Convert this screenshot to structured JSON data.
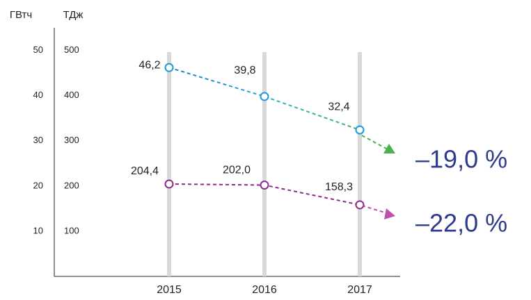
{
  "chart_data": {
    "type": "line",
    "y_label": "ГВтч",
    "y2_label": "ТДж",
    "categories": [
      "2015",
      "2016",
      "2017"
    ],
    "series": [
      {
        "name": "ГВтч",
        "color": "#1a9ad6",
        "values": [
          46.2,
          39.8,
          32.4
        ],
        "value_labels": [
          "46,2",
          "39,8",
          "32,4"
        ]
      },
      {
        "name": "ТДж",
        "color": "#8e2a8e",
        "axis": "y2",
        "values": [
          204.4,
          202.0,
          158.3
        ],
        "value_labels": [
          "204,4",
          "202,0",
          "158,3"
        ]
      }
    ],
    "ylim": [
      0,
      55
    ],
    "yticks": [
      10,
      20,
      30,
      40,
      50
    ],
    "y2lim": [
      0,
      550
    ],
    "y2ticks": [
      100,
      200,
      300,
      400,
      500
    ],
    "annotations": [
      "–19,0 %",
      "–22,0 %"
    ]
  }
}
